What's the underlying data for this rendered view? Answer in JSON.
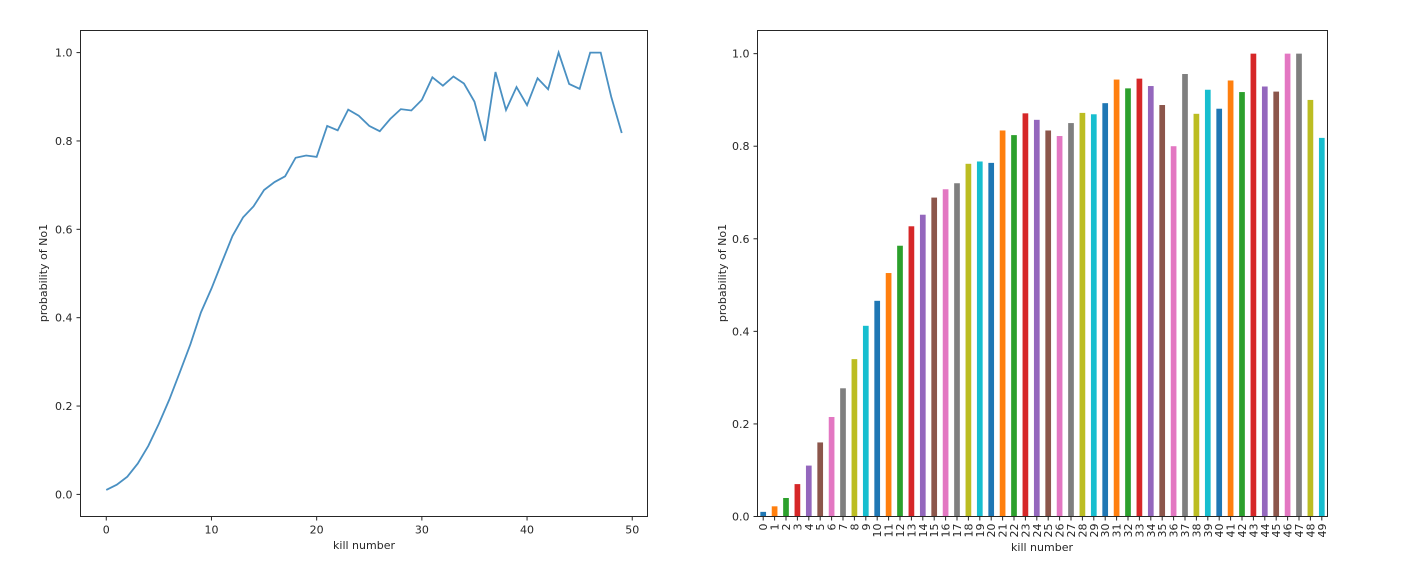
{
  "chart_data": [
    {
      "type": "line",
      "xlabel": "kill number",
      "ylabel": "probability of No1",
      "xlim": [
        -2.45,
        51.45
      ],
      "ylim": [
        -0.05,
        1.05
      ],
      "xticks": [
        0,
        10,
        20,
        30,
        40,
        50
      ],
      "yticks": [
        0.0,
        0.2,
        0.4,
        0.6,
        0.8,
        1.0
      ],
      "grid": false,
      "color": "#4a90c2",
      "x": [
        0,
        1,
        2,
        3,
        4,
        5,
        6,
        7,
        8,
        9,
        10,
        11,
        12,
        13,
        14,
        15,
        16,
        17,
        18,
        19,
        20,
        21,
        22,
        23,
        24,
        25,
        26,
        27,
        28,
        29,
        30,
        31,
        32,
        33,
        34,
        35,
        36,
        37,
        38,
        39,
        40,
        41,
        42,
        43,
        44,
        45,
        46,
        47,
        48,
        49
      ],
      "values": [
        0.01,
        0.022,
        0.04,
        0.07,
        0.11,
        0.16,
        0.215,
        0.277,
        0.34,
        0.412,
        0.466,
        0.526,
        0.585,
        0.627,
        0.652,
        0.689,
        0.707,
        0.72,
        0.762,
        0.767,
        0.764,
        0.834,
        0.824,
        0.871,
        0.857,
        0.834,
        0.822,
        0.85,
        0.872,
        0.869,
        0.893,
        0.944,
        0.925,
        0.946,
        0.93,
        0.889,
        0.8,
        0.956,
        0.87,
        0.922,
        0.881,
        0.942,
        0.917,
        1.0,
        0.929,
        0.918,
        1.0,
        1.0,
        0.9,
        0.818
      ]
    },
    {
      "type": "bar",
      "xlabel": "kill number",
      "ylabel": "probability of No1",
      "ylim": [
        0.0,
        1.05
      ],
      "yticks": [
        0.0,
        0.2,
        0.4,
        0.6,
        0.8,
        1.0
      ],
      "grid": false,
      "palette": [
        "#1f77b4",
        "#ff7f0e",
        "#2ca02c",
        "#d62728",
        "#9467bd",
        "#8c564b",
        "#e377c2",
        "#7f7f7f",
        "#bcbd22",
        "#17becf"
      ],
      "categories": [
        "0",
        "1",
        "2",
        "3",
        "4",
        "5",
        "6",
        "7",
        "8",
        "9",
        "10",
        "11",
        "12",
        "13",
        "14",
        "15",
        "16",
        "17",
        "18",
        "19",
        "20",
        "21",
        "22",
        "23",
        "24",
        "25",
        "26",
        "27",
        "28",
        "29",
        "30",
        "31",
        "32",
        "33",
        "34",
        "35",
        "36",
        "37",
        "38",
        "39",
        "40",
        "41",
        "42",
        "43",
        "44",
        "45",
        "46",
        "47",
        "48",
        "49"
      ],
      "values": [
        0.01,
        0.022,
        0.04,
        0.07,
        0.11,
        0.16,
        0.215,
        0.277,
        0.34,
        0.412,
        0.466,
        0.526,
        0.585,
        0.627,
        0.652,
        0.689,
        0.707,
        0.72,
        0.762,
        0.767,
        0.764,
        0.834,
        0.824,
        0.871,
        0.857,
        0.834,
        0.822,
        0.85,
        0.872,
        0.869,
        0.893,
        0.944,
        0.925,
        0.946,
        0.93,
        0.889,
        0.8,
        0.956,
        0.87,
        0.922,
        0.881,
        0.942,
        0.917,
        1.0,
        0.929,
        0.918,
        1.0,
        1.0,
        0.9,
        0.818
      ]
    }
  ]
}
